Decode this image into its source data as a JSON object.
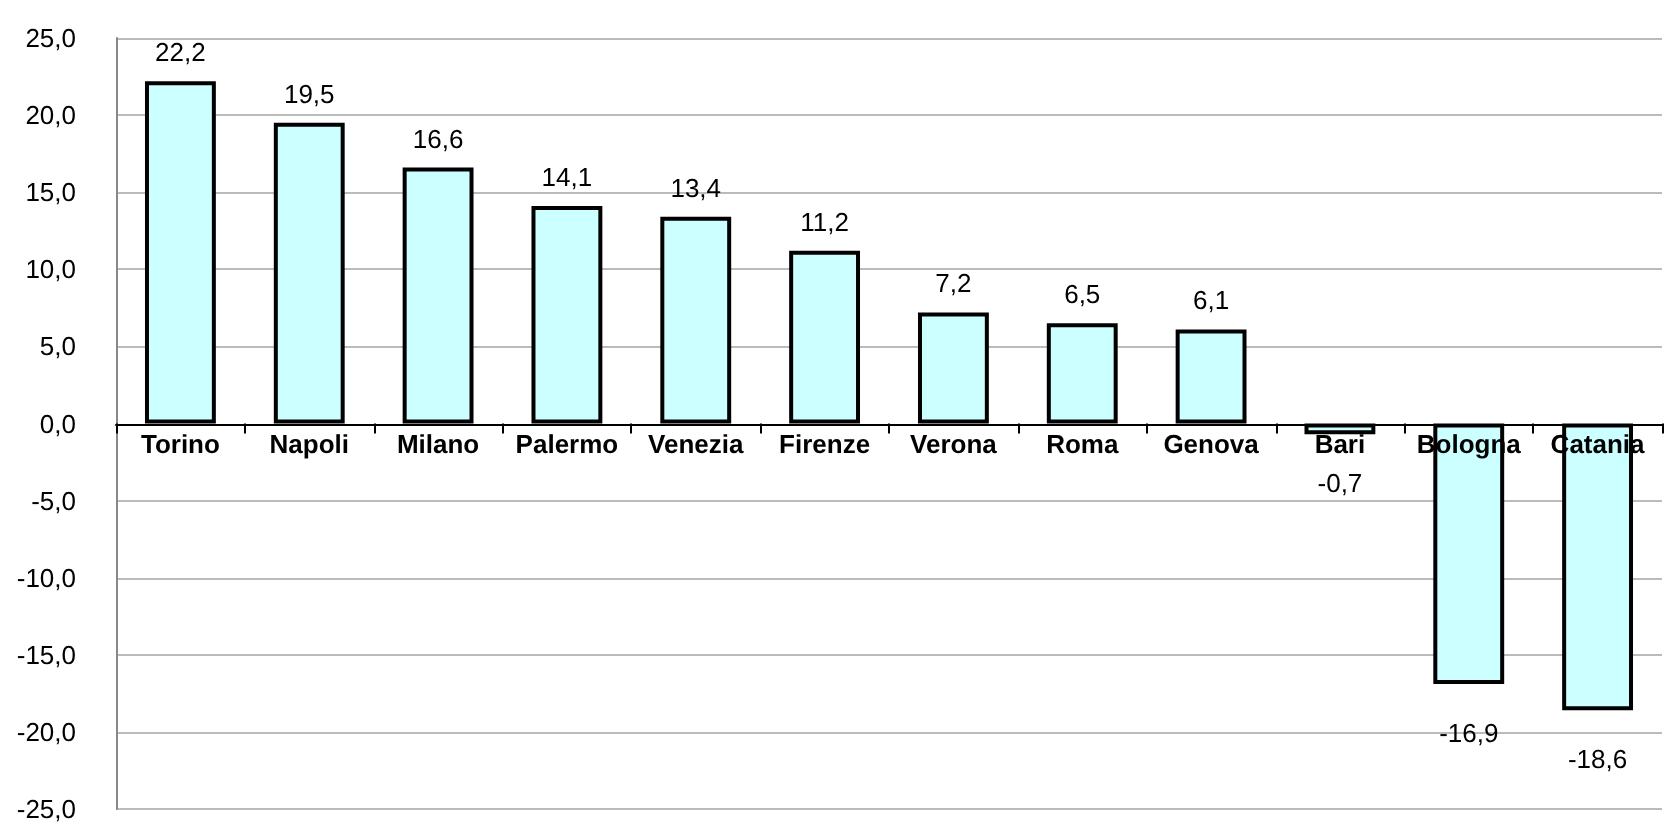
{
  "chart_data": {
    "type": "bar",
    "categories": [
      "Torino",
      "Napoli",
      "Milano",
      "Palermo",
      "Venezia",
      "Firenze",
      "Verona",
      "Roma",
      "Genova",
      "Bari",
      "Bologna",
      "Catania"
    ],
    "values": [
      22.2,
      19.5,
      16.6,
      14.1,
      13.4,
      11.2,
      7.2,
      6.5,
      6.1,
      -0.7,
      -16.9,
      -18.6
    ],
    "value_labels": [
      "22,2",
      "19,5",
      "16,6",
      "14,1",
      "13,4",
      "11,2",
      "7,2",
      "6,5",
      "6,1",
      "-0,7",
      "-16,9",
      "-18,6"
    ],
    "color": "#ccffff",
    "ylim": [
      -25,
      25
    ],
    "yticks": [
      {
        "value": -25,
        "label": "-25,0"
      },
      {
        "value": -20,
        "label": "-20,0"
      },
      {
        "value": -15,
        "label": "-15,0"
      },
      {
        "value": -10,
        "label": "-10,0"
      },
      {
        "value": -5,
        "label": "-5,0"
      },
      {
        "value": 0,
        "label": "0,0"
      },
      {
        "value": 5,
        "label": "5,0"
      },
      {
        "value": 10,
        "label": "10,0"
      },
      {
        "value": 15,
        "label": "15,0"
      },
      {
        "value": 20,
        "label": "20,0"
      },
      {
        "value": 25,
        "label": "25,0"
      }
    ],
    "grid": "y"
  }
}
